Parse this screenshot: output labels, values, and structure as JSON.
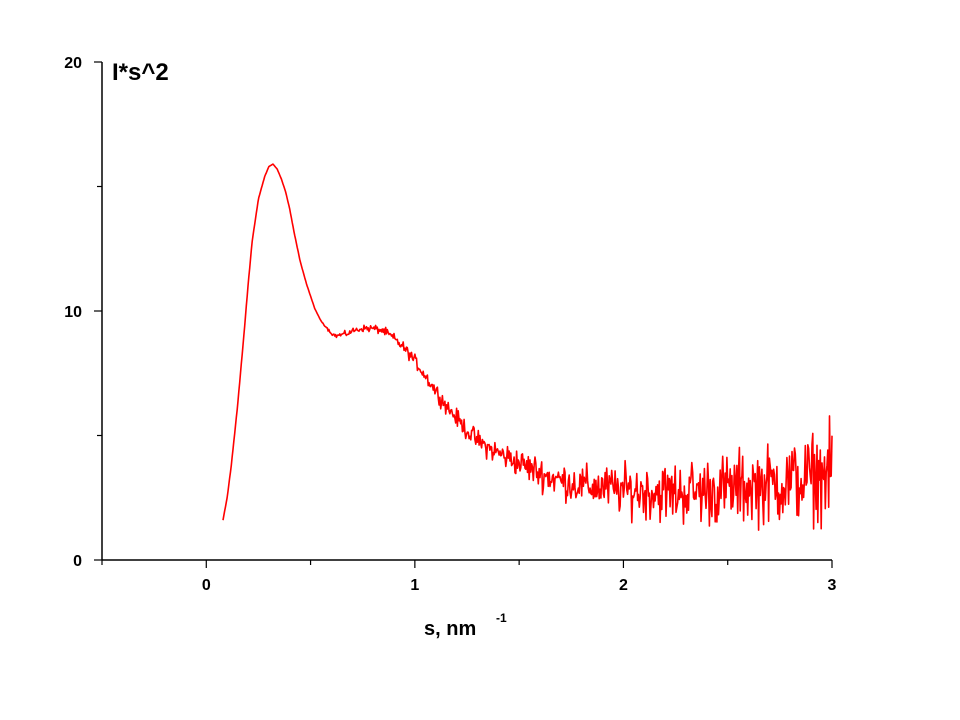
{
  "chart_data": {
    "type": "line",
    "title": "",
    "ylabel": "I*s^2",
    "xlabel": "s, nm",
    "xlabel_superscript": "-1",
    "xlim": [
      -0.5,
      3
    ],
    "ylim": [
      0,
      20
    ],
    "x_ticks": [
      0,
      1,
      2,
      3
    ],
    "y_ticks": [
      0,
      10,
      20
    ],
    "grid": false,
    "legend": "none",
    "series": [
      {
        "color": "#ff0000",
        "x": [
          0.08,
          0.1,
          0.12,
          0.15,
          0.18,
          0.2,
          0.22,
          0.25,
          0.28,
          0.3,
          0.32,
          0.34,
          0.36,
          0.38,
          0.4,
          0.42,
          0.45,
          0.48,
          0.5,
          0.52,
          0.55,
          0.58,
          0.6,
          0.62,
          0.65,
          0.68,
          0.7,
          0.75,
          0.8,
          0.85,
          0.9,
          0.95,
          1.0,
          1.05,
          1.1,
          1.15,
          1.2,
          1.25,
          1.3,
          1.35,
          1.4,
          1.45,
          1.5,
          1.55,
          1.6,
          1.65,
          1.7,
          1.75,
          1.8,
          1.85,
          1.9,
          1.95,
          2.0,
          2.05,
          2.1,
          2.15,
          2.2,
          2.25,
          2.3,
          2.35,
          2.4,
          2.45,
          2.5,
          2.55,
          2.6,
          2.65,
          2.7,
          2.75,
          2.8,
          2.85,
          2.9,
          2.95,
          3.0
        ],
        "y": [
          1.6,
          2.5,
          3.8,
          6.2,
          9.0,
          11.0,
          12.8,
          14.5,
          15.4,
          15.8,
          15.9,
          15.7,
          15.3,
          14.8,
          14.1,
          13.2,
          12.0,
          11.1,
          10.6,
          10.1,
          9.6,
          9.3,
          9.1,
          9.0,
          9.05,
          9.1,
          9.2,
          9.3,
          9.3,
          9.2,
          8.9,
          8.5,
          8.0,
          7.4,
          6.8,
          6.2,
          5.7,
          5.2,
          4.8,
          4.5,
          4.3,
          4.1,
          3.9,
          3.7,
          3.5,
          3.3,
          3.2,
          3.1,
          3.0,
          2.95,
          2.9,
          2.85,
          2.8,
          2.8,
          2.75,
          2.75,
          2.7,
          2.7,
          2.75,
          2.75,
          2.8,
          2.8,
          2.85,
          2.9,
          2.95,
          3.0,
          3.0,
          3.1,
          3.15,
          3.2,
          3.3,
          3.4,
          3.5
        ],
        "noise_amplitude": [
          0,
          0,
          0,
          0,
          0,
          0,
          0,
          0,
          0,
          0,
          0,
          0,
          0,
          0,
          0,
          0,
          0,
          0,
          0,
          0,
          0,
          0.05,
          0.05,
          0.08,
          0.1,
          0.1,
          0.1,
          0.12,
          0.15,
          0.15,
          0.18,
          0.2,
          0.22,
          0.25,
          0.28,
          0.3,
          0.32,
          0.35,
          0.38,
          0.4,
          0.45,
          0.5,
          0.5,
          0.55,
          0.6,
          0.6,
          0.65,
          0.7,
          0.7,
          0.75,
          0.8,
          0.85,
          0.9,
          0.95,
          1.0,
          1.05,
          1.1,
          1.15,
          1.2,
          1.2,
          1.25,
          1.3,
          1.3,
          1.35,
          1.4,
          1.4,
          1.45,
          1.5,
          1.5,
          1.55,
          1.6,
          1.6,
          1.7
        ]
      }
    ]
  }
}
